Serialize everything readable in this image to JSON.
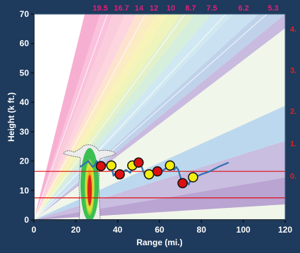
{
  "chart_data": {
    "type": "line",
    "xlabel": "Range (mi.)",
    "ylabel": "Height (k ft.)",
    "xlim": [
      0,
      120
    ],
    "ylim": [
      0,
      70
    ],
    "x_ticks": [
      0,
      20,
      40,
      60,
      80,
      100,
      120
    ],
    "y_ticks": [
      0,
      10,
      20,
      30,
      40,
      50,
      60,
      70
    ],
    "top_labels": [
      {
        "text": "19.5",
        "color": "#e0207a"
      },
      {
        "text": "16.7",
        "color": "#e0207a"
      },
      {
        "text": "14",
        "color": "#e0207a"
      },
      {
        "text": "12",
        "color": "#e0207a"
      },
      {
        "text": "10",
        "color": "#e0207a"
      },
      {
        "text": "8.7",
        "color": "#e0207a"
      },
      {
        "text": "7.5",
        "color": "#e0207a"
      },
      {
        "text": "6.2",
        "color": "#e0207a"
      },
      {
        "text": "5.3",
        "color": "#e0207a"
      }
    ],
    "right_labels": [
      {
        "text": "4.",
        "y": 65
      },
      {
        "text": "3.",
        "y": 51
      },
      {
        "text": "2.",
        "y": 37
      },
      {
        "text": "1.",
        "y": 26
      },
      {
        "text": "0.",
        "y": 15
      }
    ],
    "reference_lines": [
      {
        "y": 16.5,
        "color": "#e01010"
      },
      {
        "y": 7.5,
        "color": "#e01010"
      }
    ],
    "track": {
      "color": "#3070b0",
      "x": [
        22,
        24,
        26,
        28,
        29,
        30,
        31,
        33,
        35,
        36,
        37,
        38,
        39,
        40,
        41,
        43,
        44,
        46,
        47,
        48,
        49,
        50,
        51,
        53,
        55,
        56,
        58,
        60,
        62,
        64,
        66,
        67,
        68,
        69,
        71,
        73,
        74,
        75,
        77,
        80,
        84,
        88,
        93
      ],
      "y": [
        18,
        19,
        20,
        18,
        18.5,
        20,
        19,
        18,
        19,
        17,
        18.5,
        15,
        16,
        14,
        15,
        16.5,
        17,
        16,
        17.5,
        19,
        20,
        18,
        19,
        15,
        15.5,
        16,
        15.5,
        16,
        17,
        18,
        17.5,
        17,
        18,
        17,
        12,
        13,
        12,
        14,
        14.5,
        15.5,
        16.5,
        18,
        19.5
      ]
    },
    "markers": [
      {
        "x": 32,
        "y": 18.3,
        "color": "#dd1111"
      },
      {
        "x": 37,
        "y": 18.5,
        "color": "#f2ee10"
      },
      {
        "x": 41,
        "y": 15.5,
        "color": "#dd1111"
      },
      {
        "x": 47,
        "y": 18.5,
        "color": "#f2ee10"
      },
      {
        "x": 50,
        "y": 19.5,
        "color": "#dd1111"
      },
      {
        "x": 55,
        "y": 15.5,
        "color": "#f2ee10"
      },
      {
        "x": 59,
        "y": 16.5,
        "color": "#dd1111"
      },
      {
        "x": 65,
        "y": 18.5,
        "color": "#f2ee10"
      },
      {
        "x": 71,
        "y": 12.5,
        "color": "#dd1111"
      },
      {
        "x": 76,
        "y": 14.5,
        "color": "#f2ee10"
      }
    ],
    "grid": false,
    "legend": "none"
  }
}
